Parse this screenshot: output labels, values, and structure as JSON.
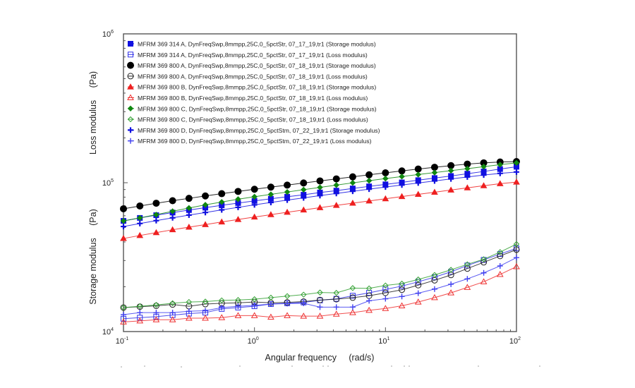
{
  "chart_data": {
    "type": "line",
    "title": "",
    "xlabel": "Angular frequency     (rad/s)",
    "ylabel_top": "Loss modulus     (Pa)",
    "ylabel_bottom": "Storage modulus     (Pa)",
    "xscale": "log",
    "yscale": "log",
    "xlim": [
      0.1,
      100
    ],
    "ylim": [
      10000,
      1000000
    ],
    "x_ticks": [
      {
        "base": "10",
        "exp": "-1"
      },
      {
        "base": "10",
        "exp": "0"
      },
      {
        "base": "10",
        "exp": "1"
      },
      {
        "base": "10",
        "exp": "2"
      }
    ],
    "y_ticks": [
      {
        "base": "10",
        "exp": "4"
      },
      {
        "base": "10",
        "exp": "5"
      },
      {
        "base": "10",
        "exp": "6"
      }
    ],
    "legend_position": "top-left",
    "x": [
      0.1,
      0.1334,
      0.1778,
      0.2371,
      0.3162,
      0.4217,
      0.5623,
      0.7499,
      1.0,
      1.334,
      1.778,
      2.371,
      3.162,
      4.217,
      5.623,
      7.499,
      10.0,
      13.34,
      17.78,
      23.71,
      31.62,
      42.17,
      56.23,
      74.99,
      100.0
    ],
    "series": [
      {
        "name": "MFRM 369 314 A, DynFreqSwp,8mmpp,25C,0_5pctStr, 07_17_19,tr1 (Storage modulus)",
        "color": "#1010e0",
        "marker": "square-filled",
        "values": [
          55400,
          58000,
          60500,
          63000,
          65500,
          68000,
          70500,
          73000,
          75500,
          78000,
          80500,
          83000,
          86000,
          88500,
          91500,
          94500,
          97500,
          100500,
          104000,
          107500,
          111000,
          115000,
          119000,
          123500,
          128000
        ]
      },
      {
        "name": "MFRM 369 314 A, DynFreqSwp,8mmpp,25C,0_5pctStr, 07_17_19,tr1 (Loss modulus)",
        "color": "#3030e8",
        "marker": "square-open",
        "values": [
          12200,
          12400,
          12600,
          12900,
          13200,
          13400,
          14200,
          14500,
          14800,
          15300,
          15500,
          15700,
          16200,
          16600,
          17400,
          18200,
          19200,
          20200,
          21600,
          23200,
          25200,
          27800,
          30300,
          33200,
          36200
        ]
      },
      {
        "name": "MFRM 369 800 A, DynFreqSwp,8mmpp,25C,0_5pctStr, 07_18_19,tr1 (Storage modulus)",
        "color": "#000000",
        "marker": "circle-filled",
        "values": [
          66800,
          69800,
          72800,
          75700,
          78500,
          81500,
          84400,
          87400,
          90400,
          93400,
          96400,
          99600,
          102800,
          106100,
          109500,
          113000,
          116500,
          120000,
          123600,
          127000,
          130300,
          133400,
          136000,
          137700,
          138700
        ]
      },
      {
        "name": "MFRM 369 800 A, DynFreqSwp,8mmpp,25C,0_5pctStr, 07_18_19,tr1 (Loss modulus)",
        "color": "#222222",
        "marker": "circle-open",
        "values": [
          14500,
          14700,
          14900,
          15200,
          14800,
          15300,
          15500,
          15600,
          15800,
          15600,
          15700,
          15900,
          16300,
          16500,
          16900,
          17400,
          18200,
          19100,
          20500,
          22100,
          24000,
          26500,
          29200,
          32200,
          35500
        ]
      },
      {
        "name": "MFRM 369 800 B, DynFreqSwp,8mmpp,25C,0_5pctStr, 07_18_19,tr1 (Storage modulus)",
        "color": "#ee2020",
        "marker": "triangle-filled",
        "values": [
          42200,
          44200,
          46200,
          48300,
          50300,
          52300,
          54500,
          56600,
          58800,
          61000,
          63300,
          65600,
          68000,
          70400,
          72900,
          75400,
          78000,
          80700,
          83500,
          86300,
          89300,
          92400,
          95500,
          98500,
          101000
        ]
      },
      {
        "name": "MFRM 369 800 B, DynFreqSwp,8mmpp,25C,0_5pctStr, 07_18_19,tr1 (Loss modulus)",
        "color": "#ee3030",
        "marker": "triangle-open",
        "values": [
          11600,
          11800,
          12000,
          12000,
          12300,
          12300,
          12400,
          12800,
          12800,
          12500,
          12800,
          12700,
          12700,
          13100,
          13400,
          13900,
          14300,
          14900,
          15800,
          16900,
          18200,
          19800,
          21600,
          24200,
          27300
        ]
      },
      {
        "name": "MFRM 369 800 C, DynFreqSwp,8mmpp,25C,0_5pctStr, 07_18_19,tr1 (Storage modulus)",
        "color": "#118811",
        "marker": "diamond-filled",
        "values": [
          55400,
          58000,
          61000,
          64300,
          67600,
          71000,
          74200,
          77500,
          80500,
          83500,
          86600,
          89800,
          93000,
          96400,
          99800,
          103200,
          106600,
          110000,
          113500,
          117000,
          120600,
          124300,
          128200,
          132200,
          136000
        ]
      },
      {
        "name": "MFRM 369 800 C, DynFreqSwp,8mmpp,25C,0_5pctStr, 07_18_19,tr1 (Loss modulus)",
        "color": "#33a033",
        "marker": "diamond-open",
        "values": [
          14500,
          14800,
          15100,
          15500,
          15800,
          15900,
          16200,
          16300,
          16500,
          16900,
          17300,
          17700,
          18300,
          18200,
          19600,
          19500,
          20400,
          21000,
          22400,
          24000,
          26000,
          28300,
          30600,
          34200,
          38700
        ]
      },
      {
        "name": "MFRM 369 800 D, DynFreqSwp,8mmpp,25C,0_5pctStm, 07_22_19,tr1 (Storage modulus)",
        "color": "#1010e0",
        "marker": "plus-filled",
        "values": [
          50800,
          53200,
          55600,
          58100,
          60600,
          63100,
          65700,
          68300,
          71000,
          73700,
          76400,
          79100,
          81900,
          84700,
          87600,
          90500,
          93500,
          96500,
          99600,
          102800,
          106000,
          109300,
          112600,
          115500,
          118000
        ]
      },
      {
        "name": "MFRM 369 800 D, DynFreqSwp,8mmpp,25C,0_5pctStm, 07_22_19,tr1 (Loss modulus)",
        "color": "#4040f0",
        "marker": "plus-open",
        "values": [
          13000,
          13400,
          13400,
          13400,
          13700,
          13800,
          14500,
          14800,
          15000,
          15300,
          15400,
          15500,
          14600,
          14600,
          14600,
          16100,
          16600,
          17200,
          18100,
          19300,
          20800,
          22600,
          24800,
          27600,
          31400
        ]
      }
    ]
  }
}
